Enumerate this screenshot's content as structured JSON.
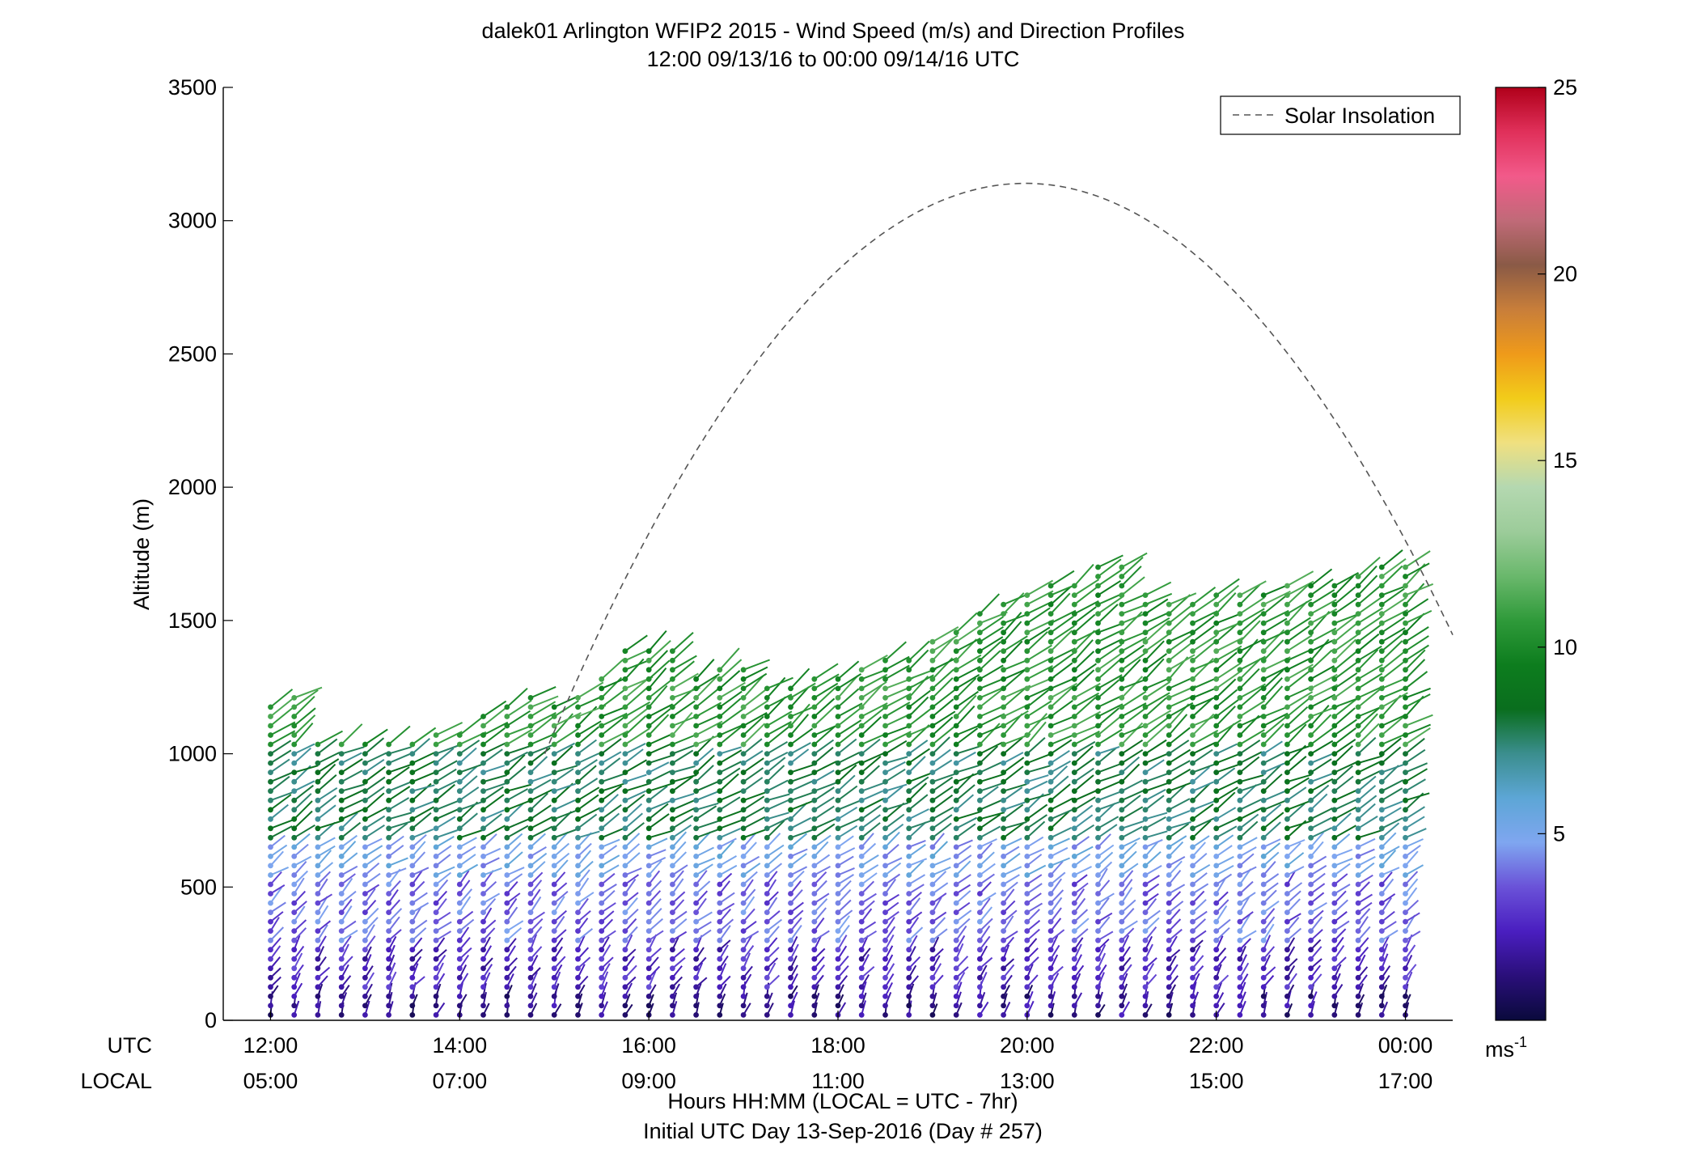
{
  "chart_data": {
    "type": "scatter",
    "title": "dalek01 Arlington WFIP2 2015 - Wind Speed (m/s) and Direction Profiles",
    "subtitle": "12:00 09/13/16 to 00:00 09/14/16  UTC",
    "ylabel": "Altitude (m)",
    "ylim": [
      0,
      3500
    ],
    "y_ticks": [
      "0",
      "500",
      "1000",
      "1500",
      "2000",
      "2500",
      "3000",
      "3500"
    ],
    "xlim_utc_hours": [
      11.5,
      24.5
    ],
    "x_ticks_utc": [
      "12:00",
      "14:00",
      "16:00",
      "18:00",
      "20:00",
      "22:00",
      "00:00"
    ],
    "x_ticks_local": [
      "05:00",
      "07:00",
      "09:00",
      "11:00",
      "13:00",
      "15:00",
      "17:00"
    ],
    "x_row_labels": {
      "utc": "UTC",
      "local": "LOCAL"
    },
    "xlabel": "Hours HH:MM  (LOCAL = UTC - 7hr)",
    "xlabel2": "Initial UTC Day 13-Sep-2016 (Day # 257)",
    "legend": {
      "entry": "Solar Insolation",
      "position": "top-right",
      "style": "dashed"
    },
    "colorbar": {
      "range": [
        0,
        25
      ],
      "ticks": [
        "5",
        "10",
        "15",
        "20",
        "25"
      ],
      "unit": "ms",
      "unit_exp": "-1",
      "colors": [
        "#0a0a3c",
        "#2a0f7a",
        "#4a1ec0",
        "#6a52d8",
        "#7fa6f0",
        "#5da6d6",
        "#3b8e8e",
        "#0a6e1e",
        "#0d7d1e",
        "#2f9a3a",
        "#6ab86c",
        "#9ccc9a",
        "#b4d8b0",
        "#f0e080",
        "#f2cc1a",
        "#ef9a1a",
        "#c87e3a",
        "#8a5a46",
        "#c06a78",
        "#f25a8a",
        "#e0305a",
        "#b0001a"
      ]
    },
    "solar_insolation": {
      "peak_utc_hours": 19.98,
      "peak_altitude_m": 3140,
      "x_utc_hours": [
        14.9,
        16.0,
        17.0,
        18.0,
        19.0,
        20.0,
        21.0,
        22.0,
        23.0,
        24.0,
        24.5
      ],
      "y_altitude_m": [
        1000,
        1900,
        2380,
        2790,
        3040,
        3140,
        3060,
        2790,
        2350,
        1760,
        1500
      ]
    },
    "profiles": {
      "time_start_utc_hours": 12.0,
      "time_step_hours": 0.25,
      "count": 49,
      "top_altitude_m": [
        1200,
        1230,
        1050,
        1060,
        1050,
        1050,
        1060,
        1100,
        1100,
        1150,
        1180,
        1220,
        1200,
        1220,
        1300,
        1400,
        1400,
        1400,
        1300,
        1320,
        1340,
        1250,
        1260,
        1280,
        1300,
        1320,
        1350,
        1380,
        1420,
        1480,
        1530,
        1560,
        1620,
        1650,
        1660,
        1700,
        1700,
        1600,
        1560,
        1580,
        1600,
        1620,
        1620,
        1640,
        1640,
        1660,
        1680,
        1700,
        1700
      ],
      "range_gate_m": 35,
      "speed_bands": [
        {
          "max_altitude_m": 120,
          "speed_ms": 1.5,
          "direction_deg": 200
        },
        {
          "max_altitude_m": 280,
          "speed_ms": 2.5,
          "direction_deg": 215
        },
        {
          "max_altitude_m": 520,
          "speed_ms": 3.8,
          "direction_deg": 225
        },
        {
          "max_altitude_m": 650,
          "speed_ms": 5.0,
          "direction_deg": 235
        },
        {
          "max_altitude_m": 1000,
          "speed_ms": 7.8,
          "direction_deg": 240
        },
        {
          "max_altitude_m": 1800,
          "speed_ms": 10.5,
          "direction_deg": 235
        }
      ]
    }
  }
}
